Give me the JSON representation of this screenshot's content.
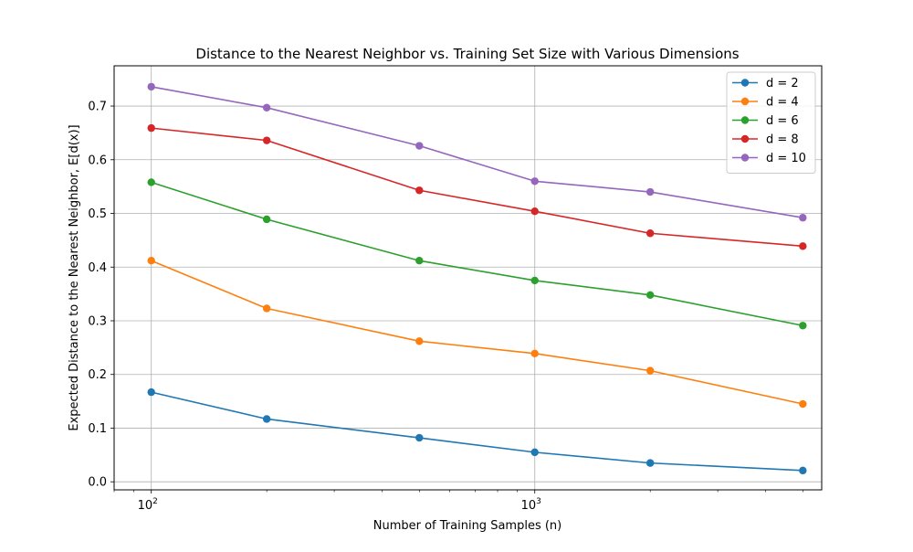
{
  "chart_data": {
    "type": "line",
    "title": "Distance to the Nearest Neighbor vs. Training Set Size with Various Dimensions",
    "xlabel": "Number of Training Samples (n)",
    "ylabel": "Expected Distance to the Nearest Neighbor, E[d(x)]",
    "x_scale": "log",
    "xlim": [
      80,
      5600
    ],
    "ylim": [
      -0.015,
      0.775
    ],
    "x": [
      100,
      200,
      500,
      1000,
      2000,
      5000
    ],
    "x_major_ticks": [
      100,
      1000
    ],
    "x_tick_labels": [
      "10",
      "10"
    ],
    "x_tick_exponents": [
      "2",
      "3"
    ],
    "y_ticks": [
      0.0,
      0.1,
      0.2,
      0.3,
      0.4,
      0.5,
      0.6,
      0.7
    ],
    "y_tick_labels": [
      "0.0",
      "0.1",
      "0.2",
      "0.3",
      "0.4",
      "0.5",
      "0.6",
      "0.7"
    ],
    "grid": true,
    "legend_position": "top-right",
    "series": [
      {
        "name": "d = 2",
        "color": "#1f77b4",
        "values": [
          0.167,
          0.117,
          0.082,
          0.055,
          0.035,
          0.021
        ]
      },
      {
        "name": "d = 4",
        "color": "#ff7f0e",
        "values": [
          0.412,
          0.323,
          0.262,
          0.239,
          0.207,
          0.145
        ]
      },
      {
        "name": "d = 6",
        "color": "#2ca02c",
        "values": [
          0.558,
          0.489,
          0.412,
          0.375,
          0.348,
          0.291
        ]
      },
      {
        "name": "d = 8",
        "color": "#d62728",
        "values": [
          0.659,
          0.636,
          0.543,
          0.504,
          0.463,
          0.439
        ]
      },
      {
        "name": "d = 10",
        "color": "#9467bd",
        "values": [
          0.736,
          0.697,
          0.626,
          0.56,
          0.54,
          0.492
        ]
      }
    ]
  }
}
